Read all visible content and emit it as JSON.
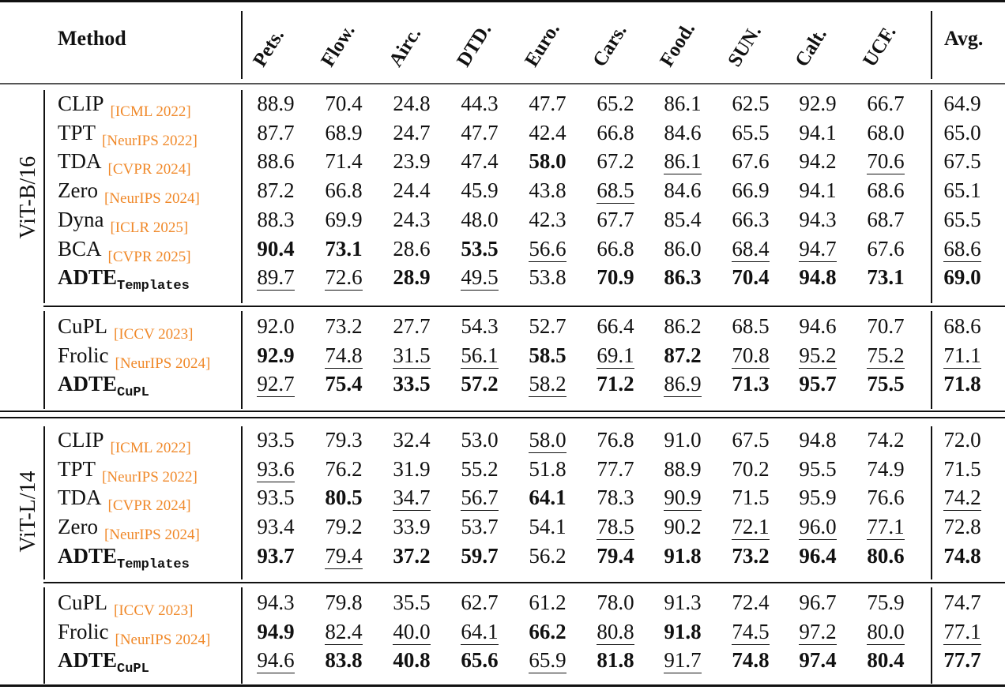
{
  "header": {
    "method": "Method",
    "avg": "Avg.",
    "columns": [
      "Pets.",
      "Flow.",
      "Airc.",
      "DTD.",
      "Euro.",
      "Cars.",
      "Food.",
      "SUN.",
      "Calt.",
      "UCF."
    ]
  },
  "style": {
    "venue_color": "#f0892a"
  },
  "groups": [
    {
      "backbone": "ViT-B/16",
      "blocks": [
        [
          {
            "name": "CLIP",
            "venue": "[ICML 2022]",
            "values": [
              "88.9",
              "70.4",
              "24.8",
              "44.3",
              "47.7",
              "65.2",
              "86.1",
              "62.5",
              "92.9",
              "66.7",
              "64.9"
            ],
            "bold": [],
            "underline": []
          },
          {
            "name": "TPT",
            "venue": "[NeurIPS 2022]",
            "values": [
              "87.7",
              "68.9",
              "24.7",
              "47.7",
              "42.4",
              "66.8",
              "84.6",
              "65.5",
              "94.1",
              "68.0",
              "65.0"
            ],
            "bold": [],
            "underline": []
          },
          {
            "name": "TDA",
            "venue": "[CVPR 2024]",
            "values": [
              "88.6",
              "71.4",
              "23.9",
              "47.4",
              "58.0",
              "67.2",
              "86.1",
              "67.6",
              "94.2",
              "70.6",
              "67.5"
            ],
            "bold": [
              4
            ],
            "underline": [
              6,
              9
            ]
          },
          {
            "name": "Zero",
            "venue": "[NeurIPS 2024]",
            "values": [
              "87.2",
              "66.8",
              "24.4",
              "45.9",
              "43.8",
              "68.5",
              "84.6",
              "66.9",
              "94.1",
              "68.6",
              "65.1"
            ],
            "bold": [],
            "underline": [
              5
            ]
          },
          {
            "name": "Dyna",
            "venue": "[ICLR 2025]",
            "values": [
              "88.3",
              "69.9",
              "24.3",
              "48.0",
              "42.3",
              "67.7",
              "85.4",
              "66.3",
              "94.3",
              "68.7",
              "65.5"
            ],
            "bold": [],
            "underline": []
          },
          {
            "name": "BCA",
            "venue": "[CVPR 2025]",
            "values": [
              "90.4",
              "73.1",
              "28.6",
              "53.5",
              "56.6",
              "66.8",
              "86.0",
              "68.4",
              "94.7",
              "67.6",
              "68.6"
            ],
            "bold": [
              0,
              1,
              3
            ],
            "underline": [
              4,
              7,
              8,
              10
            ]
          },
          {
            "name": "ADTE",
            "sub": "Templates",
            "ours": true,
            "values": [
              "89.7",
              "72.6",
              "28.9",
              "49.5",
              "53.8",
              "70.9",
              "86.3",
              "70.4",
              "94.8",
              "73.1",
              "69.0"
            ],
            "bold": [
              2,
              5,
              6,
              7,
              8,
              9,
              10
            ],
            "underline": [
              0,
              1,
              3
            ]
          }
        ],
        [
          {
            "name": "CuPL",
            "venue": "[ICCV 2023]",
            "values": [
              "92.0",
              "73.2",
              "27.7",
              "54.3",
              "52.7",
              "66.4",
              "86.2",
              "68.5",
              "94.6",
              "70.7",
              "68.6"
            ],
            "bold": [],
            "underline": []
          },
          {
            "name": "Frolic",
            "venue": "[NeurIPS 2024]",
            "values": [
              "92.9",
              "74.8",
              "31.5",
              "56.1",
              "58.5",
              "69.1",
              "87.2",
              "70.8",
              "95.2",
              "75.2",
              "71.1"
            ],
            "bold": [
              0,
              4,
              6
            ],
            "underline": [
              1,
              2,
              3,
              5,
              7,
              8,
              9,
              10
            ]
          },
          {
            "name": "ADTE",
            "sub": "CuPL",
            "ours": true,
            "values": [
              "92.7",
              "75.4",
              "33.5",
              "57.2",
              "58.2",
              "71.2",
              "86.9",
              "71.3",
              "95.7",
              "75.5",
              "71.8"
            ],
            "bold": [
              1,
              2,
              3,
              5,
              7,
              8,
              9,
              10
            ],
            "underline": [
              0,
              4,
              6
            ]
          }
        ]
      ]
    },
    {
      "backbone": "ViT-L/14",
      "blocks": [
        [
          {
            "name": "CLIP",
            "venue": "[ICML 2022]",
            "values": [
              "93.5",
              "79.3",
              "32.4",
              "53.0",
              "58.0",
              "76.8",
              "91.0",
              "67.5",
              "94.8",
              "74.2",
              "72.0"
            ],
            "bold": [],
            "underline": [
              4
            ]
          },
          {
            "name": "TPT",
            "venue": "[NeurIPS 2022]",
            "values": [
              "93.6",
              "76.2",
              "31.9",
              "55.2",
              "51.8",
              "77.7",
              "88.9",
              "70.2",
              "95.5",
              "74.9",
              "71.5"
            ],
            "bold": [],
            "underline": [
              0
            ]
          },
          {
            "name": "TDA",
            "venue": "[CVPR 2024]",
            "values": [
              "93.5",
              "80.5",
              "34.7",
              "56.7",
              "64.1",
              "78.3",
              "90.9",
              "71.5",
              "95.9",
              "76.6",
              "74.2"
            ],
            "bold": [
              1,
              4
            ],
            "underline": [
              2,
              3,
              6,
              10
            ]
          },
          {
            "name": "Zero",
            "venue": "[NeurIPS 2024]",
            "values": [
              "93.4",
              "79.2",
              "33.9",
              "53.7",
              "54.1",
              "78.5",
              "90.2",
              "72.1",
              "96.0",
              "77.1",
              "72.8"
            ],
            "bold": [],
            "underline": [
              5,
              7,
              8,
              9
            ]
          },
          {
            "name": "ADTE",
            "sub": "Templates",
            "ours": true,
            "values": [
              "93.7",
              "79.4",
              "37.2",
              "59.7",
              "56.2",
              "79.4",
              "91.8",
              "73.2",
              "96.4",
              "80.6",
              "74.8"
            ],
            "bold": [
              0,
              2,
              3,
              5,
              6,
              7,
              8,
              9,
              10
            ],
            "underline": [
              1
            ]
          }
        ],
        [
          {
            "name": "CuPL",
            "venue": "[ICCV 2023]",
            "values": [
              "94.3",
              "79.8",
              "35.5",
              "62.7",
              "61.2",
              "78.0",
              "91.3",
              "72.4",
              "96.7",
              "75.9",
              "74.7"
            ],
            "bold": [],
            "underline": []
          },
          {
            "name": "Frolic",
            "venue": "[NeurIPS 2024]",
            "values": [
              "94.9",
              "82.4",
              "40.0",
              "64.1",
              "66.2",
              "80.8",
              "91.8",
              "74.5",
              "97.2",
              "80.0",
              "77.1"
            ],
            "bold": [
              0,
              4,
              6
            ],
            "underline": [
              1,
              2,
              3,
              5,
              7,
              8,
              9,
              10
            ]
          },
          {
            "name": "ADTE",
            "sub": "CuPL",
            "ours": true,
            "values": [
              "94.6",
              "83.8",
              "40.8",
              "65.6",
              "65.9",
              "81.8",
              "91.7",
              "74.8",
              "97.4",
              "80.4",
              "77.7"
            ],
            "bold": [
              1,
              2,
              3,
              5,
              7,
              8,
              9,
              10
            ],
            "underline": [
              0,
              4,
              6
            ]
          }
        ]
      ]
    }
  ]
}
